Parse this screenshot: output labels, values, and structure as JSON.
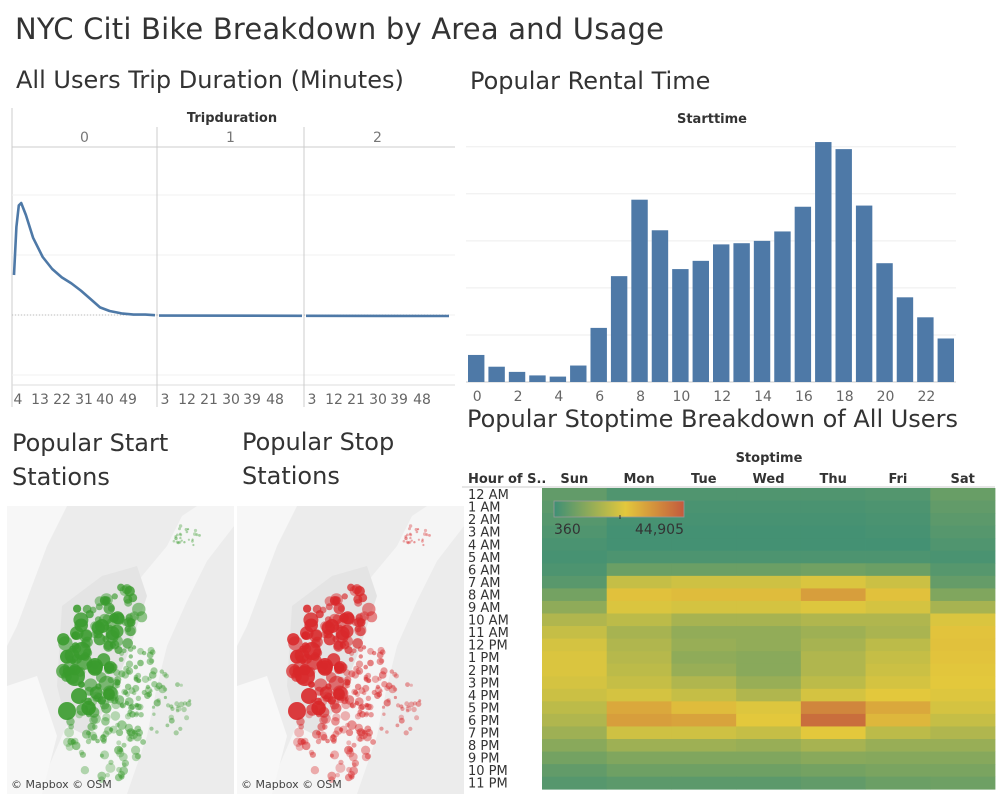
{
  "dashboard_title": "NYC Citi Bike Breakdown by Area and Usage",
  "sheets": {
    "duration": {
      "title": "All Users Trip Duration (Minutes)",
      "header": "Tripduration",
      "panels": [
        "0",
        "1",
        "2"
      ]
    },
    "rental": {
      "title": "Popular Rental Time",
      "header": "Starttime"
    },
    "start_stations": {
      "title": "Popular Start Stations",
      "credit": "© Mapbox © OSM",
      "color": "#3a9b2e"
    },
    "stop_stations": {
      "title": "Popular Stop Stations",
      "credit": "© Mapbox © OSM",
      "color": "#d8282a"
    },
    "stoptime": {
      "title": "Popular Stoptime Breakdown of All Users",
      "header": "Stoptime",
      "row_header": "Hour of S..",
      "legend_min": "360",
      "legend_max": "44,905"
    }
  },
  "colors": {
    "bar": "#4e79a7",
    "line": "#4e79a7",
    "heat_low": "#3e8f75",
    "heat_mid": "#e3c83c",
    "heat_high": "#c35a3d"
  },
  "chart_data": [
    {
      "type": "line",
      "name": "trip_duration",
      "title": "All Users Trip Duration (Minutes)",
      "facets": [
        "0",
        "1",
        "2"
      ],
      "tick_labels": [
        [
          "4",
          "13",
          "22",
          "31",
          "40",
          "49"
        ],
        [
          "3",
          "12",
          "21",
          "30",
          "39",
          "48"
        ],
        [
          "3",
          "12",
          "21",
          "30",
          "39",
          "48"
        ]
      ],
      "series": [
        {
          "facet": "0",
          "x": [
            0,
            1,
            2,
            3,
            5,
            8,
            12,
            16,
            20,
            24,
            28,
            32,
            36,
            40,
            45,
            50,
            55,
            59
          ],
          "y": [
            0.35,
            0.75,
            0.93,
            0.95,
            0.85,
            0.66,
            0.5,
            0.4,
            0.33,
            0.28,
            0.22,
            0.15,
            0.08,
            0.05,
            0.03,
            0.02,
            0.02,
            0.015
          ]
        },
        {
          "facet": "1",
          "x": [
            0,
            59
          ],
          "y": [
            0.012,
            0.01
          ]
        },
        {
          "facet": "2",
          "x": [
            0,
            59
          ],
          "y": [
            0.01,
            0.008
          ]
        }
      ]
    },
    {
      "type": "bar",
      "name": "starttime",
      "title": "Popular Rental Time",
      "xlabel": "Starttime",
      "categories": [
        0,
        1,
        2,
        3,
        4,
        5,
        6,
        7,
        8,
        9,
        10,
        11,
        12,
        13,
        14,
        15,
        16,
        17,
        18,
        19,
        20,
        21,
        22,
        23
      ],
      "tick_labels": [
        "0",
        "2",
        "4",
        "6",
        "8",
        "10",
        "12",
        "14",
        "16",
        "18",
        "20",
        "22"
      ],
      "values": [
        11.5,
        6.5,
        4.3,
        2.8,
        2.3,
        7.0,
        23.0,
        45.0,
        77.5,
        64.5,
        48.0,
        51.5,
        58.5,
        59.0,
        60.0,
        64.0,
        74.5,
        102.0,
        99.0,
        75.0,
        50.5,
        36.0,
        27.5,
        18.5
      ],
      "ylim": [
        0,
        105
      ],
      "grid": true
    },
    {
      "type": "heatmap",
      "name": "stoptime",
      "title": "Popular Stoptime Breakdown of All Users",
      "columns": [
        "Sun",
        "Mon",
        "Tue",
        "Wed",
        "Thu",
        "Fri",
        "Sat"
      ],
      "rows": [
        "12 AM",
        "1 AM",
        "2 AM",
        "3 AM",
        "4 AM",
        "5 AM",
        "6 AM",
        "7 AM",
        "8 AM",
        "9 AM",
        "10 AM",
        "11 AM",
        "12 PM",
        "1 PM",
        "2 PM",
        "3 PM",
        "4 PM",
        "5 PM",
        "6 PM",
        "7 PM",
        "8 PM",
        "9 PM",
        "10 PM",
        "11 PM"
      ],
      "color_range": [
        360,
        44905
      ],
      "values": [
        [
          0.12,
          0.06,
          0.06,
          0.06,
          0.06,
          0.07,
          0.14
        ],
        [
          0.1,
          0.04,
          0.04,
          0.04,
          0.04,
          0.05,
          0.12
        ],
        [
          0.08,
          0.03,
          0.03,
          0.03,
          0.03,
          0.04,
          0.1
        ],
        [
          0.06,
          0.02,
          0.02,
          0.02,
          0.02,
          0.03,
          0.08
        ],
        [
          0.04,
          0.02,
          0.02,
          0.02,
          0.02,
          0.02,
          0.06
        ],
        [
          0.03,
          0.05,
          0.05,
          0.05,
          0.05,
          0.05,
          0.04
        ],
        [
          0.05,
          0.15,
          0.15,
          0.15,
          0.17,
          0.15,
          0.08
        ],
        [
          0.09,
          0.45,
          0.48,
          0.48,
          0.52,
          0.47,
          0.13
        ],
        [
          0.18,
          0.58,
          0.6,
          0.6,
          0.72,
          0.58,
          0.22
        ],
        [
          0.27,
          0.52,
          0.5,
          0.5,
          0.53,
          0.5,
          0.35
        ],
        [
          0.38,
          0.42,
          0.35,
          0.35,
          0.38,
          0.38,
          0.52
        ],
        [
          0.45,
          0.35,
          0.28,
          0.28,
          0.32,
          0.36,
          0.57
        ],
        [
          0.5,
          0.38,
          0.3,
          0.28,
          0.35,
          0.42,
          0.58
        ],
        [
          0.52,
          0.4,
          0.27,
          0.25,
          0.38,
          0.45,
          0.57
        ],
        [
          0.52,
          0.42,
          0.3,
          0.25,
          0.38,
          0.47,
          0.56
        ],
        [
          0.5,
          0.45,
          0.38,
          0.3,
          0.42,
          0.5,
          0.55
        ],
        [
          0.47,
          0.5,
          0.45,
          0.38,
          0.5,
          0.55,
          0.53
        ],
        [
          0.42,
          0.68,
          0.6,
          0.53,
          0.82,
          0.68,
          0.5
        ],
        [
          0.38,
          0.72,
          0.7,
          0.55,
          0.92,
          0.62,
          0.45
        ],
        [
          0.32,
          0.48,
          0.48,
          0.45,
          0.55,
          0.42,
          0.38
        ],
        [
          0.25,
          0.32,
          0.32,
          0.3,
          0.35,
          0.3,
          0.3
        ],
        [
          0.18,
          0.22,
          0.22,
          0.22,
          0.25,
          0.24,
          0.24
        ],
        [
          0.12,
          0.16,
          0.16,
          0.16,
          0.18,
          0.2,
          0.2
        ],
        [
          0.08,
          0.1,
          0.1,
          0.1,
          0.12,
          0.15,
          0.16
        ]
      ]
    }
  ]
}
